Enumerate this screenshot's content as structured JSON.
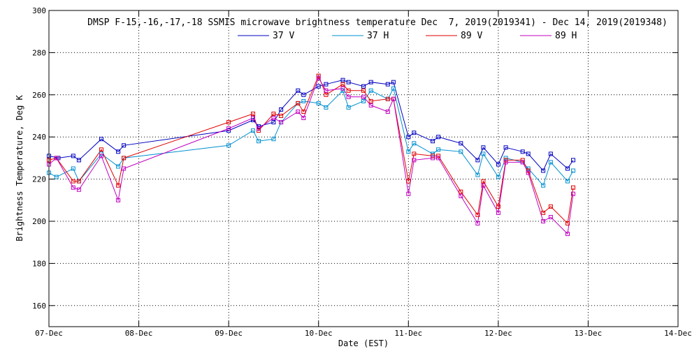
{
  "chart_data": {
    "type": "line",
    "title": "DMSP F-15,-16,-17,-18 SSMIS microwave brightness temperature Dec  7, 2019(2019341) - Dec 14, 2019(2019348)",
    "xlabel": "Date (EST)",
    "ylabel": "Brightness Temperature, Deg K",
    "x_axis": {
      "type": "date",
      "range": [
        "2019-12-07 00:00",
        "2019-12-14 00:00"
      ],
      "ticks": [
        {
          "value": "2019-12-07 00:00",
          "label": "07-Dec"
        },
        {
          "value": "2019-12-08 00:00",
          "label": "08-Dec"
        },
        {
          "value": "2019-12-09 00:00",
          "label": "09-Dec"
        },
        {
          "value": "2019-12-10 00:00",
          "label": "10-Dec"
        },
        {
          "value": "2019-12-11 00:00",
          "label": "11-Dec"
        },
        {
          "value": "2019-12-12 00:00",
          "label": "12-Dec"
        },
        {
          "value": "2019-12-13 00:00",
          "label": "13-Dec"
        },
        {
          "value": "2019-12-14 00:00",
          "label": "14-Dec"
        }
      ]
    },
    "y_axis": {
      "range": [
        150,
        300
      ],
      "ticks": [
        "160",
        "180",
        "200",
        "220",
        "240",
        "260",
        "280",
        "300"
      ]
    },
    "grid": true,
    "legend_position": "top",
    "marker": "square",
    "series": [
      {
        "name": "37 V",
        "color": "#0000c0",
        "points": [
          [
            "2019-12-07 00:00",
            231
          ],
          [
            "2019-12-07 02:30",
            230
          ],
          [
            "2019-12-07 06:30",
            231
          ],
          [
            "2019-12-07 08:00",
            229
          ],
          [
            "2019-12-07 14:00",
            239
          ],
          [
            "2019-12-07 18:30",
            233
          ],
          [
            "2019-12-07 20:00",
            236
          ],
          [
            "2019-12-09 00:00",
            243
          ],
          [
            "2019-12-09 06:30",
            248
          ],
          [
            "2019-12-09 08:00",
            245
          ],
          [
            "2019-12-09 12:00",
            247
          ],
          [
            "2019-12-09 14:00",
            253
          ],
          [
            "2019-12-09 18:30",
            262
          ],
          [
            "2019-12-09 20:00",
            260
          ],
          [
            "2019-12-10 00:00",
            264
          ],
          [
            "2019-12-10 02:00",
            265
          ],
          [
            "2019-12-10 06:30",
            267
          ],
          [
            "2019-12-10 08:00",
            266
          ],
          [
            "2019-12-10 12:00",
            264
          ],
          [
            "2019-12-10 14:00",
            266
          ],
          [
            "2019-12-10 18:30",
            265
          ],
          [
            "2019-12-10 20:00",
            266
          ],
          [
            "2019-12-11 00:00",
            240
          ],
          [
            "2019-12-11 01:30",
            242
          ],
          [
            "2019-12-11 06:30",
            238
          ],
          [
            "2019-12-11 08:00",
            240
          ],
          [
            "2019-12-11 14:00",
            237
          ],
          [
            "2019-12-11 18:30",
            229
          ],
          [
            "2019-12-11 20:00",
            235
          ],
          [
            "2019-12-12 00:00",
            227
          ],
          [
            "2019-12-12 02:00",
            235
          ],
          [
            "2019-12-12 06:30",
            233
          ],
          [
            "2019-12-12 08:00",
            232
          ],
          [
            "2019-12-12 12:00",
            224
          ],
          [
            "2019-12-12 14:00",
            232
          ],
          [
            "2019-12-12 18:30",
            225
          ],
          [
            "2019-12-12 20:00",
            229
          ]
        ]
      },
      {
        "name": "37 H",
        "color": "#0090d0",
        "points": [
          [
            "2019-12-07 00:00",
            223
          ],
          [
            "2019-12-07 02:00",
            221
          ],
          [
            "2019-12-07 06:30",
            225
          ],
          [
            "2019-12-07 08:00",
            219
          ],
          [
            "2019-12-07 14:00",
            232
          ],
          [
            "2019-12-07 18:30",
            226
          ],
          [
            "2019-12-07 20:00",
            230
          ],
          [
            "2019-12-09 00:00",
            236
          ],
          [
            "2019-12-09 06:30",
            243
          ],
          [
            "2019-12-09 08:00",
            238
          ],
          [
            "2019-12-09 12:00",
            239
          ],
          [
            "2019-12-09 14:00",
            247
          ],
          [
            "2019-12-09 18:30",
            256
          ],
          [
            "2019-12-09 20:00",
            257
          ],
          [
            "2019-12-10 00:00",
            256
          ],
          [
            "2019-12-10 02:00",
            254
          ],
          [
            "2019-12-10 06:30",
            262
          ],
          [
            "2019-12-10 08:00",
            254
          ],
          [
            "2019-12-10 12:00",
            257
          ],
          [
            "2019-12-10 14:00",
            262
          ],
          [
            "2019-12-10 18:30",
            258
          ],
          [
            "2019-12-10 20:00",
            263
          ],
          [
            "2019-12-11 00:00",
            233
          ],
          [
            "2019-12-11 01:30",
            237
          ],
          [
            "2019-12-11 06:30",
            232
          ],
          [
            "2019-12-11 08:00",
            234
          ],
          [
            "2019-12-11 14:00",
            233
          ],
          [
            "2019-12-11 18:30",
            222
          ],
          [
            "2019-12-11 20:00",
            232
          ],
          [
            "2019-12-12 00:00",
            221
          ],
          [
            "2019-12-12 02:00",
            230
          ],
          [
            "2019-12-12 06:30",
            228
          ],
          [
            "2019-12-12 08:00",
            225
          ],
          [
            "2019-12-12 12:00",
            217
          ],
          [
            "2019-12-12 14:00",
            228
          ],
          [
            "2019-12-12 18:30",
            219
          ],
          [
            "2019-12-12 20:00",
            224
          ]
        ]
      },
      {
        "name": "89 V",
        "color": "#e00000",
        "points": [
          [
            "2019-12-07 00:00",
            229
          ],
          [
            "2019-12-07 02:00",
            230
          ],
          [
            "2019-12-07 06:30",
            219
          ],
          [
            "2019-12-07 08:00",
            219
          ],
          [
            "2019-12-07 14:00",
            234
          ],
          [
            "2019-12-07 18:30",
            217
          ],
          [
            "2019-12-07 20:00",
            230
          ],
          [
            "2019-12-09 00:00",
            247
          ],
          [
            "2019-12-09 06:30",
            251
          ],
          [
            "2019-12-09 08:00",
            243
          ],
          [
            "2019-12-09 12:00",
            251
          ],
          [
            "2019-12-09 14:00",
            250
          ],
          [
            "2019-12-09 18:30",
            256
          ],
          [
            "2019-12-09 20:00",
            252
          ],
          [
            "2019-12-10 00:00",
            269
          ],
          [
            "2019-12-10 02:00",
            260
          ],
          [
            "2019-12-10 06:30",
            265
          ],
          [
            "2019-12-10 08:00",
            262
          ],
          [
            "2019-12-10 12:00",
            262
          ],
          [
            "2019-12-10 14:00",
            257
          ],
          [
            "2019-12-10 18:30",
            258
          ],
          [
            "2019-12-10 20:00",
            258
          ],
          [
            "2019-12-11 00:00",
            219
          ],
          [
            "2019-12-11 01:30",
            232
          ],
          [
            "2019-12-11 06:30",
            231
          ],
          [
            "2019-12-11 08:00",
            231
          ],
          [
            "2019-12-11 14:00",
            214
          ],
          [
            "2019-12-11 18:30",
            203
          ],
          [
            "2019-12-11 20:00",
            219
          ],
          [
            "2019-12-12 00:00",
            207
          ],
          [
            "2019-12-12 02:00",
            229
          ],
          [
            "2019-12-12 06:30",
            229
          ],
          [
            "2019-12-12 08:00",
            224
          ],
          [
            "2019-12-12 12:00",
            204
          ],
          [
            "2019-12-12 14:00",
            207
          ],
          [
            "2019-12-12 18:30",
            199
          ],
          [
            "2019-12-12 20:00",
            216
          ]
        ]
      },
      {
        "name": "89 H",
        "color": "#c000c0",
        "points": [
          [
            "2019-12-07 00:00",
            227
          ],
          [
            "2019-12-07 02:00",
            230
          ],
          [
            "2019-12-07 06:30",
            216
          ],
          [
            "2019-12-07 08:00",
            215
          ],
          [
            "2019-12-07 14:00",
            231
          ],
          [
            "2019-12-07 18:30",
            210
          ],
          [
            "2019-12-07 20:00",
            225
          ],
          [
            "2019-12-09 00:00",
            244
          ],
          [
            "2019-12-09 06:30",
            249
          ],
          [
            "2019-12-09 08:00",
            244
          ],
          [
            "2019-12-09 12:00",
            249
          ],
          [
            "2019-12-09 14:00",
            247
          ],
          [
            "2019-12-09 18:30",
            252
          ],
          [
            "2019-12-09 20:00",
            249
          ],
          [
            "2019-12-10 00:00",
            268
          ],
          [
            "2019-12-10 02:00",
            262
          ],
          [
            "2019-12-10 06:30",
            263
          ],
          [
            "2019-12-10 08:00",
            259
          ],
          [
            "2019-12-10 12:00",
            259
          ],
          [
            "2019-12-10 14:00",
            255
          ],
          [
            "2019-12-10 18:30",
            252
          ],
          [
            "2019-12-10 20:00",
            258
          ],
          [
            "2019-12-11 00:00",
            213
          ],
          [
            "2019-12-11 01:30",
            229
          ],
          [
            "2019-12-11 06:30",
            230
          ],
          [
            "2019-12-11 08:00",
            230
          ],
          [
            "2019-12-11 14:00",
            212
          ],
          [
            "2019-12-11 18:30",
            199
          ],
          [
            "2019-12-11 20:00",
            217
          ],
          [
            "2019-12-12 00:00",
            204
          ],
          [
            "2019-12-12 02:00",
            228
          ],
          [
            "2019-12-12 06:30",
            228
          ],
          [
            "2019-12-12 08:00",
            223
          ],
          [
            "2019-12-12 12:00",
            200
          ],
          [
            "2019-12-12 14:00",
            202
          ],
          [
            "2019-12-12 18:30",
            194
          ],
          [
            "2019-12-12 20:00",
            213
          ]
        ]
      }
    ]
  }
}
